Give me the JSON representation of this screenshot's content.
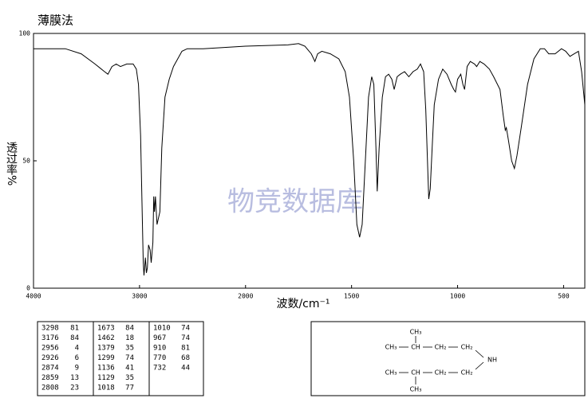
{
  "chart_data": {
    "type": "line",
    "title": "薄膜法",
    "y_label": "透过率%",
    "x_label": "波数/cm⁻¹",
    "watermark": "物竞数据库",
    "xlim": [
      4000,
      400
    ],
    "xscale_break": 2000,
    "xticks": [
      4000,
      3000,
      2000,
      1500,
      1000,
      500
    ],
    "ylim": [
      0,
      100
    ],
    "yticks": [
      0,
      50,
      100
    ],
    "color": "#000000",
    "x": [
      4000,
      3700,
      3550,
      3420,
      3330,
      3298,
      3260,
      3220,
      3180,
      3120,
      3060,
      3030,
      3010,
      2990,
      2975,
      2965,
      2958,
      2945,
      2935,
      2926,
      2915,
      2900,
      2890,
      2874,
      2866,
      2859,
      2850,
      2835,
      2808,
      2790,
      2760,
      2720,
      2680,
      2640,
      2600,
      2550,
      2400,
      2200,
      2000,
      1800,
      1750,
      1720,
      1690,
      1673,
      1660,
      1640,
      1600,
      1560,
      1530,
      1510,
      1490,
      1475,
      1462,
      1450,
      1435,
      1420,
      1405,
      1395,
      1385,
      1379,
      1370,
      1355,
      1340,
      1325,
      1310,
      1299,
      1285,
      1270,
      1250,
      1230,
      1210,
      1190,
      1175,
      1160,
      1150,
      1140,
      1136,
      1129,
      1120,
      1110,
      1090,
      1070,
      1050,
      1030,
      1018,
      1010,
      1000,
      985,
      975,
      967,
      955,
      940,
      920,
      910,
      895,
      875,
      850,
      830,
      800,
      785,
      775,
      770,
      760,
      745,
      732,
      720,
      700,
      670,
      640,
      610,
      590,
      570,
      540,
      510,
      490,
      470,
      450,
      430,
      415,
      400
    ],
    "values": [
      94,
      94,
      92,
      88,
      85,
      84,
      87,
      88,
      87,
      88,
      88,
      86,
      80,
      60,
      30,
      10,
      5,
      12,
      6,
      8,
      17,
      15,
      10,
      18,
      36,
      30,
      36,
      25,
      30,
      55,
      75,
      82,
      87,
      90,
      93,
      94,
      94,
      94.5,
      95,
      95.5,
      96,
      95,
      92,
      89,
      92,
      93,
      92,
      90,
      85,
      75,
      50,
      25,
      20,
      25,
      50,
      75,
      83,
      80,
      55,
      38,
      55,
      75,
      83,
      84,
      82,
      78,
      83,
      84,
      85,
      83,
      85,
      86,
      88,
      85,
      70,
      45,
      35,
      39,
      55,
      72,
      82,
      86,
      84,
      80,
      78,
      77,
      82,
      84,
      80,
      78,
      87,
      89,
      88,
      87,
      89,
      88,
      86,
      83,
      78,
      68,
      62,
      63,
      58,
      50,
      47,
      52,
      63,
      80,
      90,
      94,
      94,
      92,
      92,
      94,
      93,
      91,
      92,
      93,
      85,
      72
    ]
  },
  "peak_table": [
    [
      [
        3298,
        81
      ],
      [
        3176,
        84
      ],
      [
        2956,
        4
      ],
      [
        2926,
        6
      ],
      [
        2874,
        9
      ],
      [
        2859,
        13
      ],
      [
        2808,
        23
      ]
    ],
    [
      [
        1673,
        84
      ],
      [
        1462,
        18
      ],
      [
        1379,
        35
      ],
      [
        1299,
        74
      ],
      [
        1136,
        41
      ],
      [
        1129,
        35
      ],
      [
        1018,
        77
      ]
    ],
    [
      [
        1010,
        74
      ],
      [
        967,
        74
      ],
      [
        910,
        81
      ],
      [
        770,
        68
      ],
      [
        732,
        44
      ]
    ]
  ],
  "structure": {
    "top_methyl": "CH₃",
    "upper_chain": [
      "CH₃",
      "CH",
      "CH₂",
      "CH₂"
    ],
    "amine": "NH",
    "lower_chain": [
      "CH₃",
      "CH",
      "CH₂",
      "CH₂"
    ],
    "bottom_methyl": "CH₃"
  }
}
